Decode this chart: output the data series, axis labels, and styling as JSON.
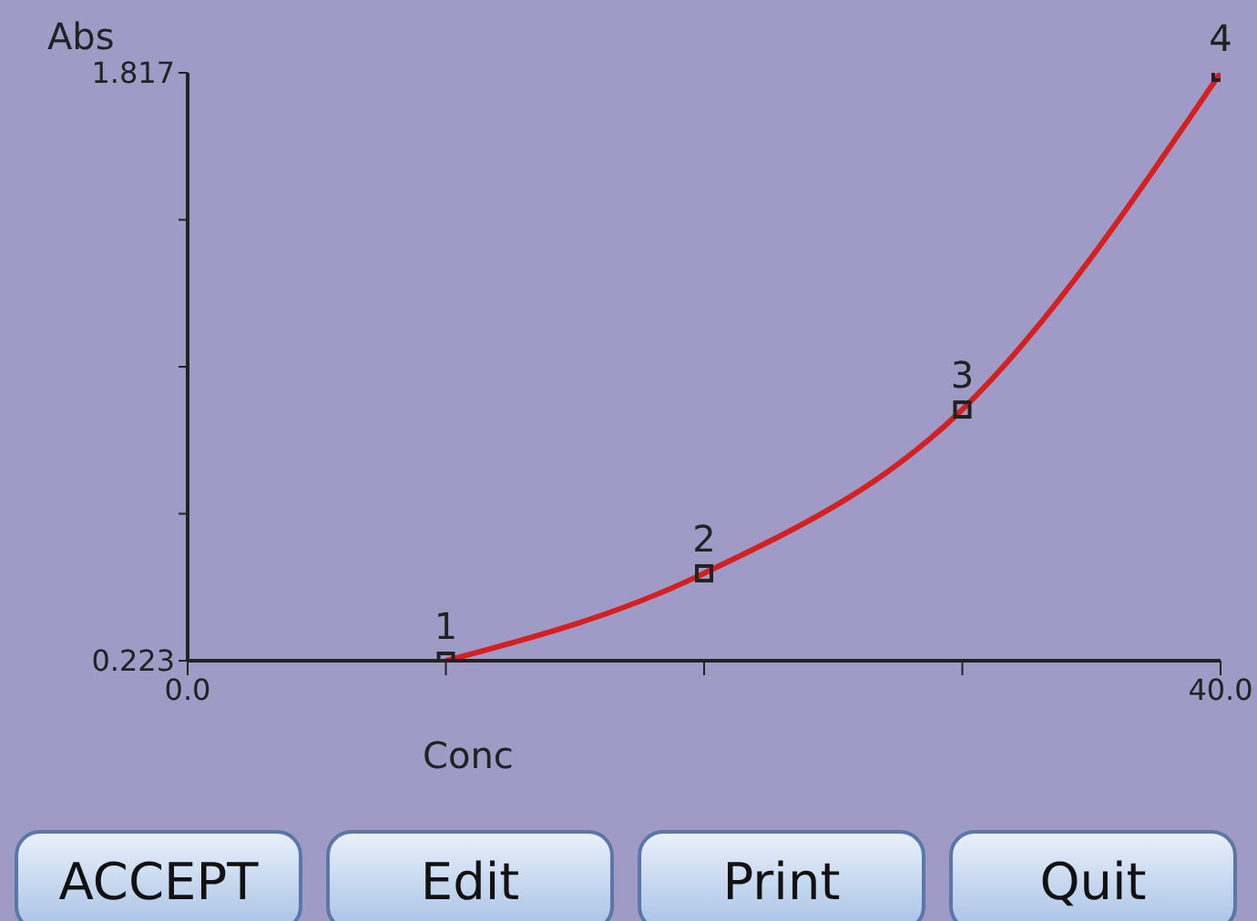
{
  "chart_data": {
    "type": "line",
    "xlabel": "Conc",
    "ylabel": "Abs",
    "x": [
      10,
      20,
      30,
      40
    ],
    "series": [
      {
        "color": "#d42020",
        "values": [
          0.223,
          0.46,
          0.904,
          1.817
        ]
      }
    ],
    "xlim": [
      0,
      40
    ],
    "xticks": [
      {
        "value": 0,
        "label": "0.0"
      },
      {
        "value": 10,
        "label": null
      },
      {
        "value": 20,
        "label": null
      },
      {
        "value": 30,
        "label": null
      },
      {
        "value": 40,
        "label": "40.0"
      }
    ],
    "ylim": [
      0.223,
      1.817
    ],
    "yticks": [
      0.223,
      {
        "value": 0.6215,
        "label": null
      },
      {
        "value": 1.02,
        "label": null
      },
      {
        "value": 1.4185,
        "label": null
      },
      1.817
    ],
    "marker": "square",
    "grid": false,
    "legend": false,
    "annotations": [
      {
        "text": "1",
        "x": 10,
        "y": 0.223
      },
      {
        "text": "2",
        "x": 20,
        "y": 0.46
      },
      {
        "text": "3",
        "x": 30,
        "y": 0.904
      },
      {
        "text": "4",
        "x": 40,
        "y": 1.817
      },
      "ACCEPT",
      "Edit",
      "Print",
      "Quit"
    ]
  }
}
